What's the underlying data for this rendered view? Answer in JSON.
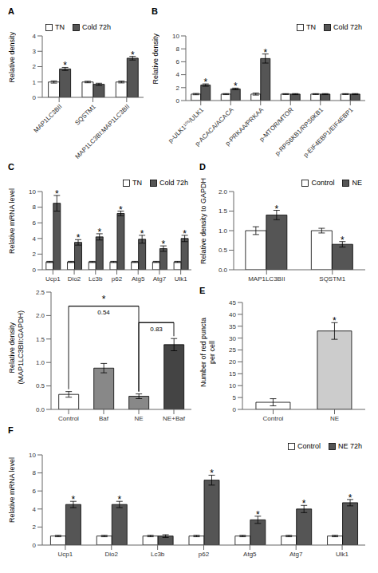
{
  "chart_data": [
    {
      "type": "bar",
      "title": "A",
      "categories": [
        "MAP1LC3BII",
        "SQSTM1",
        "MAP1LC3BI:MAP1LC3BII"
      ],
      "series": [
        {
          "name": "TN",
          "color": "#ffffff",
          "values": [
            1.0,
            1.0,
            1.0
          ],
          "errors": [
            0.07,
            0.05,
            0.06
          ]
        },
        {
          "name": "Cold 72h",
          "color": "#555555",
          "values": [
            1.85,
            0.85,
            2.55
          ],
          "errors": [
            0.1,
            0.07,
            0.12
          ]
        }
      ],
      "y_label": "Relative density",
      "ylim": [
        0,
        4
      ],
      "yticks": [
        0,
        1,
        2,
        3,
        4
      ],
      "legend": "upper left",
      "annotations": [
        {
          "text": "*",
          "category": "MAP1LC3BII",
          "series": "Cold 72h"
        },
        {
          "text": "*",
          "category": "MAP1LC3BI:MAP1LC3BII",
          "series": "Cold 72h"
        }
      ]
    },
    {
      "type": "bar",
      "title": "B",
      "categories": [
        "p-ULK1¹⁰⁵/ULK1",
        "p-ACACA/ACACA",
        "p-PRKAA/PRKAA",
        "p-MTOR/MTOR",
        "p-RPS6KB1/RPS6KB1",
        "p-EIF4EBP1/EIF4EBP1"
      ],
      "series": [
        {
          "name": "TN",
          "color": "#ffffff",
          "values": [
            1.0,
            1.0,
            1.0,
            1.0,
            1.0,
            1.0
          ],
          "errors": [
            0.1,
            0.08,
            0.15,
            0.07,
            0.07,
            0.07
          ]
        },
        {
          "name": "Cold 72h",
          "color": "#555555",
          "values": [
            2.4,
            1.8,
            6.5,
            1.0,
            1.0,
            1.0
          ],
          "errors": [
            0.18,
            0.13,
            0.7,
            0.08,
            0.08,
            0.08
          ]
        }
      ],
      "y_label": "Relative density",
      "ylim": [
        0,
        10
      ],
      "yticks": [
        0,
        2,
        4,
        6,
        8,
        10
      ],
      "legend": "upper right",
      "annotations": [
        {
          "text": "*",
          "category": "p-ULK1¹⁰⁵/ULK1",
          "series": "Cold 72h"
        },
        {
          "text": "*",
          "category": "p-ACACA/ACACA",
          "series": "Cold 72h"
        },
        {
          "text": "*",
          "category": "p-PRKAA/PRKAA",
          "series": "Cold 72h"
        }
      ]
    },
    {
      "type": "bar",
      "title": "C",
      "categories": [
        "Ucp1",
        "Dio2",
        "Lc3b",
        "p62",
        "Atg5",
        "Atg7",
        "Ulk1"
      ],
      "series": [
        {
          "name": "TN",
          "color": "#ffffff",
          "values": [
            1.0,
            1.0,
            1.0,
            1.0,
            1.0,
            1.0,
            1.0
          ],
          "errors": [
            0.08,
            0.08,
            0.08,
            0.08,
            0.08,
            0.08,
            0.08
          ]
        },
        {
          "name": "Cold 72h",
          "color": "#555555",
          "values": [
            8.5,
            3.5,
            4.2,
            7.2,
            3.9,
            2.7,
            4.0
          ],
          "errors": [
            1.0,
            0.35,
            0.4,
            0.3,
            0.5,
            0.35,
            0.4
          ]
        }
      ],
      "y_label": "Relative mRNA level",
      "ylim": [
        0,
        10
      ],
      "yticks": [
        0,
        2,
        4,
        6,
        8,
        10
      ],
      "legend": "upper right",
      "annotations": [
        {
          "text": "*",
          "category": "Ucp1",
          "series": "Cold 72h"
        },
        {
          "text": "*",
          "category": "Dio2",
          "series": "Cold 72h"
        },
        {
          "text": "*",
          "category": "Lc3b",
          "series": "Cold 72h"
        },
        {
          "text": "*",
          "category": "p62",
          "series": "Cold 72h"
        },
        {
          "text": "*",
          "category": "Atg5",
          "series": "Cold 72h"
        },
        {
          "text": "*",
          "category": "Atg7",
          "series": "Cold 72h"
        },
        {
          "text": "*",
          "category": "Ulk1",
          "series": "Cold 72h"
        }
      ]
    },
    {
      "type": "bar",
      "title": "D",
      "categories": [
        "MAP1LC3BII",
        "SQSTM1"
      ],
      "series": [
        {
          "name": "Control",
          "color": "#ffffff",
          "values": [
            1.0,
            1.0
          ],
          "errors": [
            0.1,
            0.06
          ]
        },
        {
          "name": "NE",
          "color": "#555555",
          "values": [
            1.4,
            0.65
          ],
          "errors": [
            0.12,
            0.07
          ]
        }
      ],
      "y_label": "Relative density to GAPDH",
      "ylim": [
        0,
        2
      ],
      "yticks": [
        {
          "value": 0,
          "label": "0.0"
        },
        0.5,
        {
          "value": 1,
          "label": "1.0"
        },
        1.5,
        {
          "value": 2,
          "label": "2.0"
        }
      ],
      "legend": "upper right",
      "annotations": [
        {
          "text": "*",
          "category": "MAP1LC3BII",
          "series": "NE"
        },
        {
          "text": "*",
          "category": "SQSTM1",
          "series": "NE"
        }
      ]
    },
    {
      "type": "bar",
      "categories": [
        "Control",
        "Baf",
        "NE",
        "NE+Baf"
      ],
      "values": [
        0.32,
        0.88,
        0.28,
        1.38
      ],
      "errors": [
        0.06,
        0.1,
        0.05,
        0.13
      ],
      "colors": [
        "#ffffff",
        "#888888",
        "#888888",
        "#444444"
      ],
      "y_label": "Relative density\n(MAP1LC3BII:GAPDH)",
      "ylim": [
        0,
        2.5
      ],
      "yticks": [
        {
          "value": 0,
          "label": "0.0"
        },
        0.5,
        {
          "value": 1,
          "label": "1.0"
        },
        1.5,
        {
          "value": 2,
          "label": "2.0"
        },
        2.5
      ],
      "annotations": [
        {
          "from": "Control",
          "to": "NE",
          "y": 2.2,
          "above": "*",
          "below": "0.54"
        },
        {
          "from": "NE",
          "to": "NE+Baf",
          "y": 1.85,
          "below": "0.83"
        }
      ]
    },
    {
      "type": "bar",
      "title": "E",
      "categories": [
        "Control",
        "NE"
      ],
      "values": [
        3.0,
        33.0
      ],
      "errors": [
        1.5,
        3.5
      ],
      "colors": [
        "#ffffff",
        "#cccccc"
      ],
      "y_label": "Number of red puncta\nper cell",
      "ylim": [
        0,
        45
      ],
      "yticks": [
        0,
        5,
        10,
        15,
        20,
        25,
        30,
        35,
        40,
        45
      ],
      "annotations": [
        {
          "text": "*",
          "category": "NE"
        }
      ]
    },
    {
      "type": "bar",
      "title": "F",
      "categories": [
        "Ucp1",
        "Dio2",
        "Lc3b",
        "p62",
        "Atg5",
        "Atg7",
        "Ulk1"
      ],
      "series": [
        {
          "name": "Control",
          "color": "#ffffff",
          "values": [
            1.0,
            1.0,
            1.0,
            1.0,
            1.0,
            1.0,
            1.0
          ],
          "errors": [
            0.08,
            0.08,
            0.08,
            0.08,
            0.08,
            0.08,
            0.08
          ]
        },
        {
          "name": "NE 72h",
          "color": "#555555",
          "values": [
            4.5,
            4.5,
            1.0,
            7.2,
            2.8,
            4.0,
            4.7
          ],
          "errors": [
            0.35,
            0.35,
            0.15,
            0.55,
            0.4,
            0.4,
            0.35
          ]
        }
      ],
      "y_label": "Relative mRNA level",
      "ylim": [
        0,
        10
      ],
      "yticks": [
        0,
        2,
        4,
        6,
        8,
        10
      ],
      "legend": "upper right",
      "annotations": [
        {
          "text": "*",
          "category": "Ucp1",
          "series": "NE 72h"
        },
        {
          "text": "*",
          "category": "Dio2",
          "series": "NE 72h"
        },
        {
          "text": "*",
          "category": "p62",
          "series": "NE 72h"
        },
        {
          "text": "*",
          "category": "Atg5",
          "series": "NE 72h"
        },
        {
          "text": "*",
          "category": "Atg7",
          "series": "NE 72h"
        },
        {
          "text": "*",
          "category": "Ulk1",
          "series": "NE 72h"
        }
      ]
    }
  ]
}
